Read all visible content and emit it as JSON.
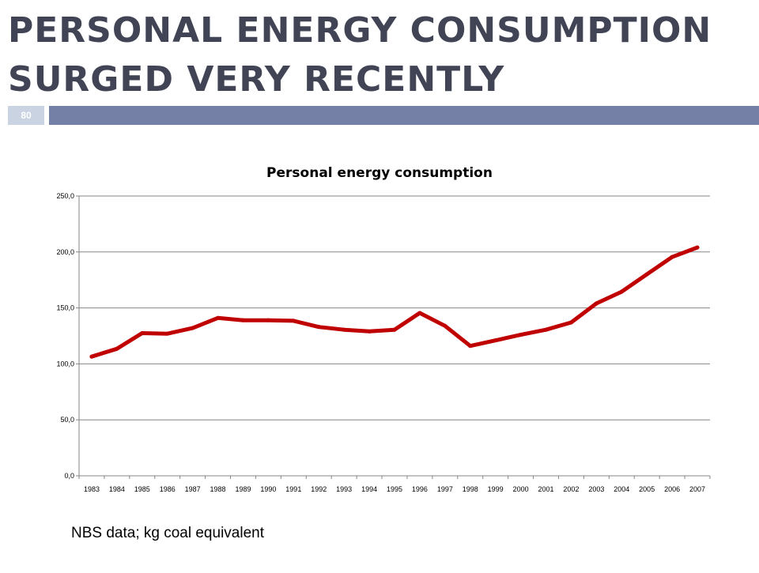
{
  "slide": {
    "title": "PERSONAL ENERGY CONSUMPTION SURGED VERY RECENTLY",
    "page_number": "80",
    "source_note": "NBS data; kg coal equivalent"
  },
  "colors": {
    "title_text": "#414455",
    "title_rule": "#7480a6",
    "badge_bg": "#c9d3e2",
    "series_line": "#c00000",
    "gridline": "#868686"
  },
  "chart_data": {
    "type": "line",
    "title": "Personal energy consumption",
    "xlabel": "",
    "ylabel": "",
    "categories": [
      "1983",
      "1984",
      "1985",
      "1986",
      "1987",
      "1988",
      "1989",
      "1990",
      "1991",
      "1992",
      "1993",
      "1994",
      "1995",
      "1996",
      "1997",
      "1998",
      "1999",
      "2000",
      "2001",
      "2002",
      "2003",
      "2004",
      "2005",
      "2006",
      "2007"
    ],
    "series": [
      {
        "values": [
          106.5,
          113.5,
          127.5,
          127.0,
          132.0,
          141.0,
          139.0,
          139.0,
          138.5,
          133.0,
          130.5,
          129.0,
          130.5,
          145.5,
          134.0,
          116.0,
          121.0,
          126.0,
          130.5,
          137.0,
          154.0,
          164.5,
          180.0,
          195.5,
          204.0
        ],
        "color": "#c00000"
      }
    ],
    "ylim": [
      0,
      250
    ],
    "yticks": [
      "0,0",
      "50,0",
      "100,0",
      "150,0",
      "200,0",
      "250,0"
    ],
    "grid": true,
    "legend": "none"
  }
}
